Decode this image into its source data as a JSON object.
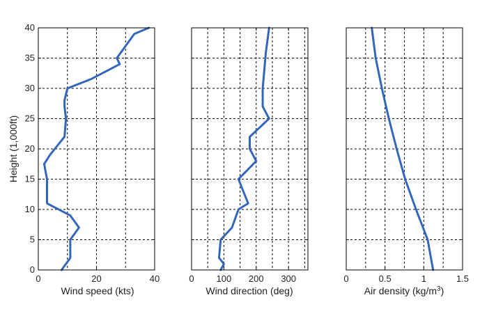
{
  "colors": {
    "series": "#3366bb",
    "grid": "#000000",
    "text": "#1f1f1f"
  },
  "chart_data": [
    {
      "type": "line",
      "xlabel": "Wind speed (kts)",
      "ylabel": "Height (1,000ft)",
      "xlim": [
        0,
        40
      ],
      "ylim": [
        0,
        40
      ],
      "xticks": [
        "0",
        "20",
        "40"
      ],
      "yticks": [
        "0",
        "5",
        "10",
        "15",
        "20",
        "25",
        "30",
        "35",
        "40"
      ],
      "grid": true,
      "series": [
        {
          "x": [
            8,
            11,
            11,
            14,
            11,
            3,
            3,
            2,
            4,
            9,
            9.5,
            9,
            9,
            10,
            18,
            28,
            27,
            33,
            38
          ],
          "y": [
            0,
            2,
            5,
            7,
            9,
            11,
            15,
            17.5,
            19,
            22,
            25,
            27,
            28,
            30,
            31.5,
            34,
            35,
            39,
            40
          ]
        }
      ]
    },
    {
      "type": "line",
      "xlabel": "Wind direction (deg)",
      "xlim": [
        0,
        360
      ],
      "ylim": [
        0,
        40
      ],
      "xticks": [
        "0",
        "100",
        "200",
        "300"
      ],
      "grid": true,
      "series": [
        {
          "x": [
            90,
            100,
            85,
            90,
            125,
            145,
            160,
            175,
            145,
            200,
            180,
            180,
            240,
            220,
            220,
            225,
            230,
            240
          ],
          "y": [
            0,
            1,
            2,
            5,
            7,
            10,
            10.5,
            11,
            15,
            18,
            20,
            22,
            25,
            27,
            30,
            33,
            36,
            40
          ]
        }
      ]
    },
    {
      "type": "line",
      "xlabel": "Air density (kg/m",
      "xlabel_sup": "3",
      "xlabel_suffix": ")",
      "xlim": [
        0,
        1.5
      ],
      "ylim": [
        0,
        40
      ],
      "xticks": [
        "0",
        "0.5",
        "1",
        "1.5"
      ],
      "grid": true,
      "series": [
        {
          "x": [
            1.12,
            1.05,
            0.9,
            0.76,
            0.65,
            0.55,
            0.46,
            0.38,
            0.33
          ],
          "y": [
            0,
            5,
            10,
            15,
            20,
            25,
            30,
            35,
            40
          ]
        }
      ]
    }
  ]
}
